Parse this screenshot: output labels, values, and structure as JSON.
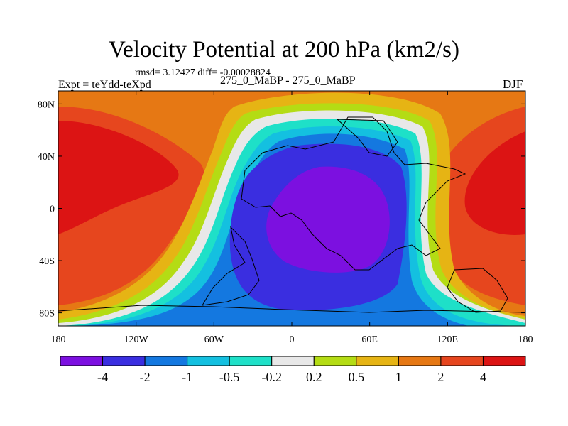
{
  "chart_data": {
    "type": "heatmap",
    "title": "Velocity Potential at 200 hPa (km2/s)",
    "stats_line": "rmsd= 3.12427 diff= -0.00028824",
    "left_label": "Expt = teYdd-teXpd",
    "center_label": "275_0_MaBP - 275_0_MaBP",
    "right_label": "DJF",
    "x_ticks": [
      {
        "value": -180,
        "label": "180"
      },
      {
        "value": -120,
        "label": "120W"
      },
      {
        "value": -60,
        "label": "60W"
      },
      {
        "value": 0,
        "label": "0"
      },
      {
        "value": 60,
        "label": "60E"
      },
      {
        "value": 120,
        "label": "120E"
      },
      {
        "value": 180,
        "label": "180"
      }
    ],
    "y_ticks": [
      {
        "value": 80,
        "label": "80N"
      },
      {
        "value": 40,
        "label": "40N"
      },
      {
        "value": 0,
        "label": "0"
      },
      {
        "value": -40,
        "label": "40S"
      },
      {
        "value": -80,
        "label": "80S"
      }
    ],
    "xlim": [
      -180,
      180
    ],
    "ylim": [
      -90,
      90
    ],
    "colorbar": {
      "levels": [
        "-4",
        "-2",
        "-1",
        "-0.5",
        "-0.2",
        "0.2",
        "0.5",
        "1",
        "2",
        "4"
      ],
      "colors": [
        "#7c10e0",
        "#3a2ee0",
        "#1478e0",
        "#14c0e0",
        "#1ee0c8",
        "#e8e8e8",
        "#b4dc14",
        "#e6b414",
        "#e67814",
        "#e6461e",
        "#dc1414"
      ]
    },
    "field_regions": [
      {
        "name": "background-orange",
        "value": 1.5
      },
      {
        "name": "west-pacific-high",
        "value": 3
      },
      {
        "name": "west-pacific-core",
        "value": 5
      },
      {
        "name": "east-high",
        "value": 3
      },
      {
        "name": "east-high-core",
        "value": 5
      },
      {
        "name": "central-low",
        "value": -3
      },
      {
        "name": "central-low-core",
        "value": -5
      }
    ]
  }
}
